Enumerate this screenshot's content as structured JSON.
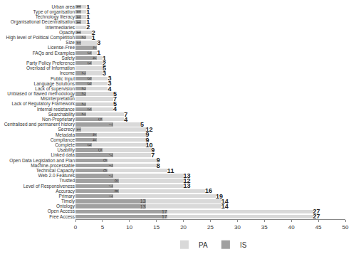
{
  "chart_data": {
    "type": "bar",
    "orientation": "horizontal",
    "stacked": true,
    "data_labels": true,
    "grid": false,
    "legend": "bottom",
    "categories": [
      "Urban area",
      "Type of organisation",
      "Technology literacy",
      "Organisational Decentralisation",
      "Intermediaries",
      "Opacity",
      "High level of Political Competition",
      "Size",
      "License-Free",
      "FAQs and Examples",
      "Safety",
      "Party Policy Preference",
      "Overload of Information",
      "Income",
      "Public Input",
      "Language Solutions",
      "Lack of supervision",
      "Unbiased or flawed methodology",
      "Misinterpretation",
      "Lack of Regulatory Framework",
      "Internal resistance",
      "Searchability",
      "Non-Proprietary",
      "Centralised and permanent history",
      "Secrecy",
      "Metadata",
      "Compliance",
      "Complete",
      "Usability",
      "Linked data",
      "Open Data Legislation and Plan",
      "Machine-processable",
      "Technical Capacity",
      "Web 2.0 Features",
      "Trusted",
      "Level of Responsiveness",
      "Accuracy",
      "Primary",
      "Timely",
      "Ontology",
      "Open Access",
      "Free Access"
    ],
    "series": [
      {
        "name": "IS",
        "color": "#a0a0a0",
        "values": [
          1,
          1,
          1,
          1,
          null,
          1,
          2,
          1,
          4,
          3,
          4,
          3,
          null,
          2,
          3,
          3,
          2,
          2,
          null,
          2,
          3,
          2,
          5,
          7,
          1,
          4,
          4,
          3,
          5,
          7,
          6,
          7,
          6,
          7,
          8,
          7,
          8,
          7,
          13,
          13,
          17,
          17
        ]
      },
      {
        "name": "PA",
        "color": "#d9d9d9",
        "values": [
          1,
          1,
          1,
          1,
          2,
          2,
          1,
          3,
          null,
          1,
          1,
          2,
          5,
          3,
          3,
          3,
          4,
          5,
          7,
          5,
          4,
          7,
          4,
          5,
          12,
          9,
          9,
          10,
          9,
          7,
          9,
          8,
          11,
          13,
          12,
          13,
          16,
          19,
          14,
          14,
          27,
          27
        ]
      }
    ],
    "xlim": [
      0,
      50
    ],
    "xticks": [
      0,
      5,
      10,
      15,
      20,
      25,
      30,
      35,
      40,
      45,
      50
    ]
  }
}
